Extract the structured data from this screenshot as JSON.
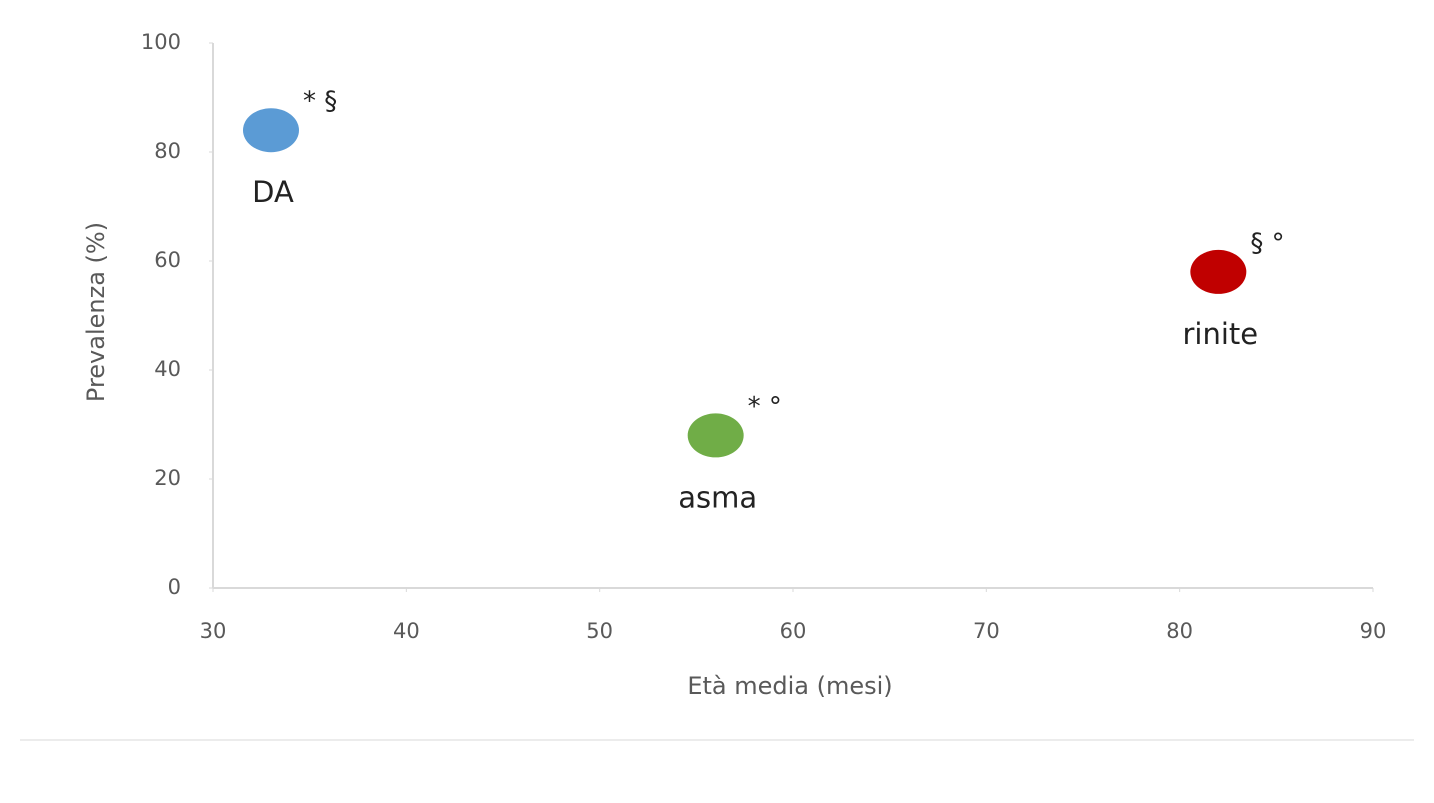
{
  "chart_data": {
    "type": "scatter",
    "x_label": "Età media (mesi)",
    "y_label": "Prevalenza (%)",
    "xlim": [
      30,
      90
    ],
    "xticks": [
      30,
      40,
      50,
      60,
      70,
      80,
      90
    ],
    "ylim": [
      0,
      100
    ],
    "yticks": [
      0,
      20,
      40,
      60,
      80,
      100
    ],
    "series": [
      {
        "name": "DA",
        "color": "#5b9bd5",
        "x": [
          33
        ],
        "y": [
          84
        ],
        "annotation": "* §"
      },
      {
        "name": "asma",
        "color": "#70ad47",
        "x": [
          56
        ],
        "y": [
          28
        ],
        "annotation": "* °"
      },
      {
        "name": "rinite",
        "color": "#c00000",
        "x": [
          82
        ],
        "y": [
          58
        ],
        "annotation": "§ °"
      }
    ]
  }
}
